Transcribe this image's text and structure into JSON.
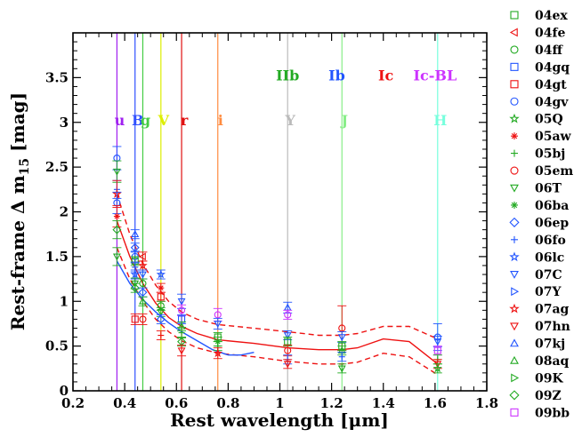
{
  "chart_data": {
    "type": "scatter",
    "title": "",
    "xlabel": "Rest wavelength [μm]",
    "ylabel": "Rest-frame Δ m",
    "ylabel_sub": "15",
    "ylabel_unit": " [mag]",
    "xlim": [
      0.2,
      1.8
    ],
    "ylim": [
      0,
      4.0
    ],
    "xticks": [
      0.2,
      0.4,
      0.6,
      0.8,
      1.0,
      1.2,
      1.4,
      1.6,
      1.8
    ],
    "yticks": [
      0,
      0.5,
      1,
      1.5,
      2,
      2.5,
      3,
      3.5
    ],
    "bands": [
      {
        "name": "u",
        "x": 0.37,
        "color": "#a020f0"
      },
      {
        "name": "B",
        "x": 0.44,
        "color": "#3050ff"
      },
      {
        "name": "g",
        "x": 0.47,
        "color": "#44cc44"
      },
      {
        "name": "V",
        "x": 0.54,
        "color": "#ddee00"
      },
      {
        "name": "r",
        "x": 0.62,
        "color": "#e01010"
      },
      {
        "name": "i",
        "x": 0.76,
        "color": "#ff8c40"
      },
      {
        "name": "Y",
        "x": 1.03,
        "color": "#bbbbbb"
      },
      {
        "name": "J",
        "x": 1.24,
        "color": "#88ee88"
      },
      {
        "name": "H",
        "x": 1.61,
        "color": "#77ffdd"
      }
    ],
    "types": [
      {
        "name": "IIb",
        "x": 1.03,
        "color": "#22aa22"
      },
      {
        "name": "Ib",
        "x": 1.22,
        "color": "#2255ff"
      },
      {
        "name": "Ic",
        "x": 1.41,
        "color": "#ee1111"
      },
      {
        "name": "Ic-BL",
        "x": 1.6,
        "color": "#cc33ff"
      }
    ],
    "legend": [
      {
        "name": "04ex",
        "color": "#22aa22",
        "marker": "square"
      },
      {
        "name": "04fe",
        "color": "#ee1111",
        "marker": "tri-left"
      },
      {
        "name": "04ff",
        "color": "#22aa22",
        "marker": "circle"
      },
      {
        "name": "04gq",
        "color": "#2255ff",
        "marker": "square"
      },
      {
        "name": "04gt",
        "color": "#ee1111",
        "marker": "square"
      },
      {
        "name": "04gv",
        "color": "#2255ff",
        "marker": "circle"
      },
      {
        "name": "05Q",
        "color": "#22aa22",
        "marker": "star"
      },
      {
        "name": "05aw",
        "color": "#ee1111",
        "marker": "asterisk"
      },
      {
        "name": "05bj",
        "color": "#22aa22",
        "marker": "plus"
      },
      {
        "name": "05em",
        "color": "#ee1111",
        "marker": "circle"
      },
      {
        "name": "06T",
        "color": "#22aa22",
        "marker": "tri-down"
      },
      {
        "name": "06ba",
        "color": "#22aa22",
        "marker": "asterisk"
      },
      {
        "name": "06ep",
        "color": "#2255ff",
        "marker": "diamond"
      },
      {
        "name": "06fo",
        "color": "#2255ff",
        "marker": "plus"
      },
      {
        "name": "06lc",
        "color": "#2255ff",
        "marker": "star"
      },
      {
        "name": "07C",
        "color": "#2255ff",
        "marker": "tri-down"
      },
      {
        "name": "07Y",
        "color": "#2255ff",
        "marker": "tri-right"
      },
      {
        "name": "07ag",
        "color": "#ee1111",
        "marker": "star"
      },
      {
        "name": "07hn",
        "color": "#ee1111",
        "marker": "tri-down"
      },
      {
        "name": "07kj",
        "color": "#2255ff",
        "marker": "tri-up"
      },
      {
        "name": "08aq",
        "color": "#22aa22",
        "marker": "tri-up"
      },
      {
        "name": "09K",
        "color": "#22aa22",
        "marker": "tri-right"
      },
      {
        "name": "09Z",
        "color": "#22aa22",
        "marker": "diamond"
      },
      {
        "name": "09bb",
        "color": "#cc33ff",
        "marker": "square"
      }
    ],
    "series": [
      {
        "name": "u",
        "x": 0.37,
        "color": "#2255ff",
        "points": [
          {
            "y": 2.6,
            "err": 0.13,
            "marker": "circle",
            "color": "#2255ff"
          },
          {
            "y": 2.45,
            "err": 0.12,
            "marker": "tri-down",
            "color": "#22aa22"
          },
          {
            "y": 2.25,
            "err": 0.1,
            "marker": "plus",
            "color": "#2255ff"
          },
          {
            "y": 2.2,
            "err": 0.15,
            "marker": "star",
            "color": "#ee1111"
          },
          {
            "y": 2.1,
            "err": 0.12,
            "marker": "circle",
            "color": "#2255ff"
          },
          {
            "y": 1.95,
            "err": 0.12,
            "marker": "asterisk",
            "color": "#ee1111"
          },
          {
            "y": 1.8,
            "err": 0.1,
            "marker": "diamond",
            "color": "#22aa22"
          },
          {
            "y": 1.5,
            "err": 0.1,
            "marker": "tri-down",
            "color": "#22aa22"
          }
        ]
      },
      {
        "name": "B",
        "x": 0.44,
        "color": "#2255ff",
        "points": [
          {
            "y": 1.75,
            "err": 0.05,
            "marker": "tri-up",
            "color": "#2255ff"
          },
          {
            "y": 1.6,
            "err": 0.05,
            "marker": "diamond",
            "color": "#2255ff"
          },
          {
            "y": 1.5,
            "err": 0.06,
            "marker": "circle",
            "color": "#2255ff"
          },
          {
            "y": 1.45,
            "err": 0.05,
            "marker": "square",
            "color": "#22aa22"
          },
          {
            "y": 1.38,
            "err": 0.05,
            "marker": "plus",
            "color": "#2255ff"
          },
          {
            "y": 1.3,
            "err": 0.05,
            "marker": "star",
            "color": "#2255ff"
          },
          {
            "y": 1.2,
            "err": 0.06,
            "marker": "tri-down",
            "color": "#22aa22"
          },
          {
            "y": 1.15,
            "err": 0.05,
            "marker": "diamond",
            "color": "#22aa22"
          },
          {
            "y": 0.8,
            "err": 0.06,
            "marker": "square",
            "color": "#ee1111"
          }
        ]
      },
      {
        "name": "g",
        "x": 0.47,
        "color": "#22aa22",
        "points": [
          {
            "y": 1.5,
            "err": 0.05,
            "marker": "tri-left",
            "color": "#ee1111"
          },
          {
            "y": 1.4,
            "err": 0.05,
            "marker": "star",
            "color": "#ee1111"
          },
          {
            "y": 1.3,
            "err": 0.05,
            "marker": "tri-down",
            "color": "#2255ff"
          },
          {
            "y": 1.2,
            "err": 0.05,
            "marker": "circle",
            "color": "#22aa22"
          },
          {
            "y": 1.1,
            "err": 0.05,
            "marker": "diamond",
            "color": "#2255ff"
          },
          {
            "y": 1.0,
            "err": 0.05,
            "marker": "tri-up",
            "color": "#22aa22"
          },
          {
            "y": 0.8,
            "err": 0.06,
            "marker": "circle",
            "color": "#ee1111"
          }
        ]
      },
      {
        "name": "V",
        "x": 0.54,
        "color": "#ddee00",
        "points": [
          {
            "y": 1.3,
            "err": 0.05,
            "marker": "star",
            "color": "#2255ff"
          },
          {
            "y": 1.15,
            "err": 0.05,
            "marker": "asterisk",
            "color": "#ee1111"
          },
          {
            "y": 1.05,
            "err": 0.05,
            "marker": "square",
            "color": "#ee1111"
          },
          {
            "y": 0.95,
            "err": 0.05,
            "marker": "circle",
            "color": "#22aa22"
          },
          {
            "y": 0.88,
            "err": 0.05,
            "marker": "tri-down",
            "color": "#22aa22"
          },
          {
            "y": 0.8,
            "err": 0.05,
            "marker": "diamond",
            "color": "#2255ff"
          },
          {
            "y": 0.62,
            "err": 0.05,
            "marker": "plus",
            "color": "#ee1111"
          }
        ]
      },
      {
        "name": "r",
        "x": 0.62,
        "color": "#ee1111",
        "points": [
          {
            "y": 1.0,
            "err": 0.08,
            "marker": "tri-down",
            "color": "#2255ff"
          },
          {
            "y": 0.9,
            "err": 0.06,
            "marker": "circle",
            "color": "#cc33ff"
          },
          {
            "y": 0.8,
            "err": 0.05,
            "marker": "square",
            "color": "#2255ff"
          },
          {
            "y": 0.72,
            "err": 0.05,
            "marker": "tri-up",
            "color": "#22aa22"
          },
          {
            "y": 0.65,
            "err": 0.06,
            "marker": "plus",
            "color": "#22aa22"
          },
          {
            "y": 0.55,
            "err": 0.05,
            "marker": "diamond",
            "color": "#22aa22"
          },
          {
            "y": 0.45,
            "err": 0.06,
            "marker": "tri-down",
            "color": "#ee1111"
          }
        ]
      },
      {
        "name": "i",
        "x": 0.76,
        "color": "#ff8c40",
        "points": [
          {
            "y": 0.85,
            "err": 0.07,
            "marker": "circle",
            "color": "#cc33ff"
          },
          {
            "y": 0.75,
            "err": 0.06,
            "marker": "tri-down",
            "color": "#2255ff"
          },
          {
            "y": 0.6,
            "err": 0.05,
            "marker": "square",
            "color": "#22aa22"
          },
          {
            "y": 0.55,
            "err": 0.05,
            "marker": "asterisk",
            "color": "#22aa22"
          },
          {
            "y": 0.5,
            "err": 0.05,
            "marker": "plus",
            "color": "#22aa22"
          },
          {
            "y": 0.42,
            "err": 0.06,
            "marker": "star",
            "color": "#ee1111"
          }
        ]
      },
      {
        "name": "Y",
        "x": 1.03,
        "color": "#bbbbbb",
        "points": [
          {
            "y": 0.93,
            "err": 0.06,
            "marker": "tri-up",
            "color": "#2255ff"
          },
          {
            "y": 0.85,
            "err": 0.05,
            "marker": "circle",
            "color": "#cc33ff"
          },
          {
            "y": 0.62,
            "err": 0.05,
            "marker": "tri-down",
            "color": "#2255ff"
          },
          {
            "y": 0.55,
            "err": 0.05,
            "marker": "square",
            "color": "#22aa22"
          },
          {
            "y": 0.45,
            "err": 0.06,
            "marker": "circle",
            "color": "#ee1111"
          },
          {
            "y": 0.35,
            "err": 0.05,
            "marker": "plus",
            "color": "#2255ff"
          },
          {
            "y": 0.3,
            "err": 0.05,
            "marker": "tri-down",
            "color": "#ee1111"
          }
        ]
      },
      {
        "name": "J",
        "x": 1.24,
        "color": "#88ee88",
        "points": [
          {
            "y": 0.7,
            "err": 0.25,
            "marker": "circle",
            "color": "#ee1111"
          },
          {
            "y": 0.6,
            "err": 0.06,
            "marker": "tri-down",
            "color": "#2255ff"
          },
          {
            "y": 0.5,
            "err": 0.05,
            "marker": "square",
            "color": "#22aa22"
          },
          {
            "y": 0.45,
            "err": 0.05,
            "marker": "tri-up",
            "color": "#22aa22"
          },
          {
            "y": 0.38,
            "err": 0.05,
            "marker": "plus",
            "color": "#2255ff"
          },
          {
            "y": 0.25,
            "err": 0.05,
            "marker": "tri-down",
            "color": "#22aa22"
          }
        ]
      },
      {
        "name": "H",
        "x": 1.61,
        "color": "#77ffdd",
        "points": [
          {
            "y": 0.6,
            "err": 0.15,
            "marker": "circle",
            "color": "#2255ff"
          },
          {
            "y": 0.55,
            "err": 0.06,
            "marker": "tri-down",
            "color": "#2255ff"
          },
          {
            "y": 0.45,
            "err": 0.05,
            "marker": "square",
            "color": "#cc33ff"
          },
          {
            "y": 0.35,
            "err": 0.05,
            "marker": "plus",
            "color": "#22aa22"
          },
          {
            "y": 0.3,
            "err": 0.05,
            "marker": "tri-down",
            "color": "#ee1111"
          },
          {
            "y": 0.25,
            "err": 0.05,
            "marker": "star",
            "color": "#22aa22"
          }
        ]
      }
    ],
    "fits": [
      {
        "name": "red-fit",
        "color": "#ee1111",
        "style": "solid",
        "x": [
          0.37,
          0.42,
          0.47,
          0.52,
          0.57,
          0.62,
          0.68,
          0.76,
          0.9,
          1.03,
          1.15,
          1.24,
          1.3,
          1.4,
          1.5,
          1.61
        ],
        "y": [
          1.9,
          1.5,
          1.2,
          0.98,
          0.82,
          0.72,
          0.64,
          0.57,
          0.53,
          0.48,
          0.46,
          0.46,
          0.48,
          0.58,
          0.55,
          0.3
        ]
      },
      {
        "name": "red-fit-upper",
        "color": "#ee1111",
        "style": "dashed",
        "x": [
          0.37,
          0.42,
          0.47,
          0.52,
          0.57,
          0.62,
          0.68,
          0.76,
          0.9,
          1.03,
          1.15,
          1.24,
          1.3,
          1.4,
          1.5,
          1.61
        ],
        "y": [
          2.2,
          1.75,
          1.42,
          1.18,
          1.0,
          0.88,
          0.8,
          0.74,
          0.7,
          0.66,
          0.62,
          0.62,
          0.64,
          0.72,
          0.72,
          0.58
        ]
      },
      {
        "name": "red-fit-lower",
        "color": "#ee1111",
        "style": "dashed",
        "x": [
          0.37,
          0.42,
          0.47,
          0.52,
          0.57,
          0.62,
          0.68,
          0.76,
          0.9,
          1.03,
          1.15,
          1.24,
          1.3,
          1.4,
          1.5,
          1.61
        ],
        "y": [
          1.6,
          1.25,
          1.0,
          0.8,
          0.66,
          0.56,
          0.48,
          0.42,
          0.38,
          0.33,
          0.3,
          0.3,
          0.32,
          0.42,
          0.38,
          0.18
        ]
      },
      {
        "name": "blue-fit",
        "color": "#2255ff",
        "style": "solid",
        "x": [
          0.37,
          0.42,
          0.47,
          0.52,
          0.57,
          0.62,
          0.68,
          0.74,
          0.8,
          0.85,
          0.9
        ],
        "y": [
          1.45,
          1.2,
          1.02,
          0.88,
          0.76,
          0.66,
          0.56,
          0.46,
          0.4,
          0.4,
          0.43
        ]
      }
    ]
  }
}
